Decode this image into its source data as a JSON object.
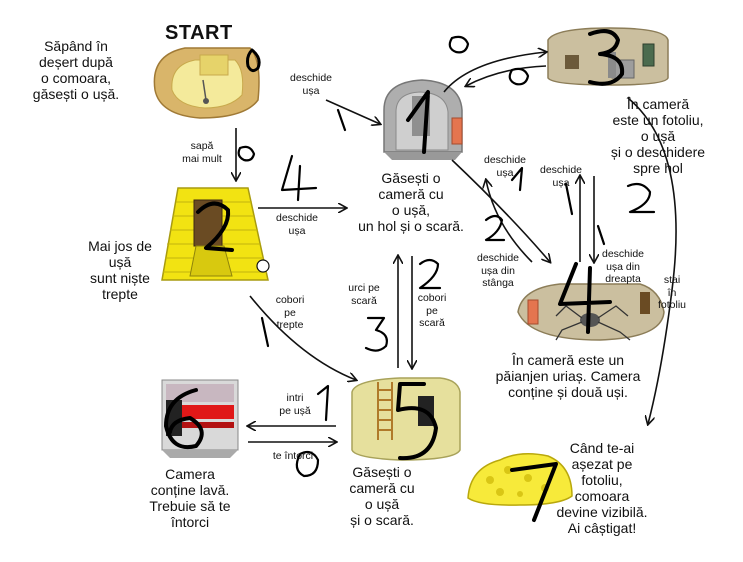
{
  "start_label": "START",
  "texts": {
    "intro": "Săpând în\ndeșert după\no comoara,\ngăsești o ușă.",
    "room1": "Găsești o\ncameră cu\no ușă,\nun hol și o scară.",
    "room3": "În cameră\neste un fotoliu,\no ușă\nși o deschidere\nspre hol",
    "room2": "Mai jos de\nușă\nsunt niște\ntrepte",
    "room4": "În cameră este un\npăianjen uriaș. Camera\nconține și două uși.",
    "room5": "Găsești o\ncameră cu\no ușă\nși o scară.",
    "room6": "Camera\nconține lavă.\nTrebuie să te\nîntorci",
    "room7": "Când te-ai\nașezat pe\nfotoliu,\ncomoara\ndevine vizibilă.\nAi câștigat!"
  },
  "edge_labels": {
    "open_door_top": "deschide\nușa",
    "dig_more": "sapă\nmai mult",
    "open_door_mid": "deschide\nușa",
    "open_door_r1": "deschide\nușa",
    "open_door_r2": "deschide\nușa",
    "open_left_door": "deschide\nușa din\nstânga",
    "open_right_door": "deschide\nușa din\ndreapta",
    "sit_chair": "stai\nîn\nfotoliu",
    "go_up_stairs": "urci pe\nscară",
    "go_down_stairs": "cobori\npe\nscară",
    "go_down_steps": "cobori\npe\ntrepte",
    "enter_door": "intri\npe ușă",
    "go_back": "te întorci"
  },
  "handwritten_numbers": {
    "start": "0",
    "room1": "1",
    "room2": "2",
    "room3": "3",
    "room4": "4",
    "room5": "5",
    "room6": "6",
    "room7": "7"
  },
  "colors": {
    "ink": "#111111",
    "sand": "#e9d68a",
    "gold": "#f2e312",
    "stone": "#b9b9b9",
    "door": "#e4754f",
    "lava": "#e01818",
    "cave": "#c8b79a"
  }
}
